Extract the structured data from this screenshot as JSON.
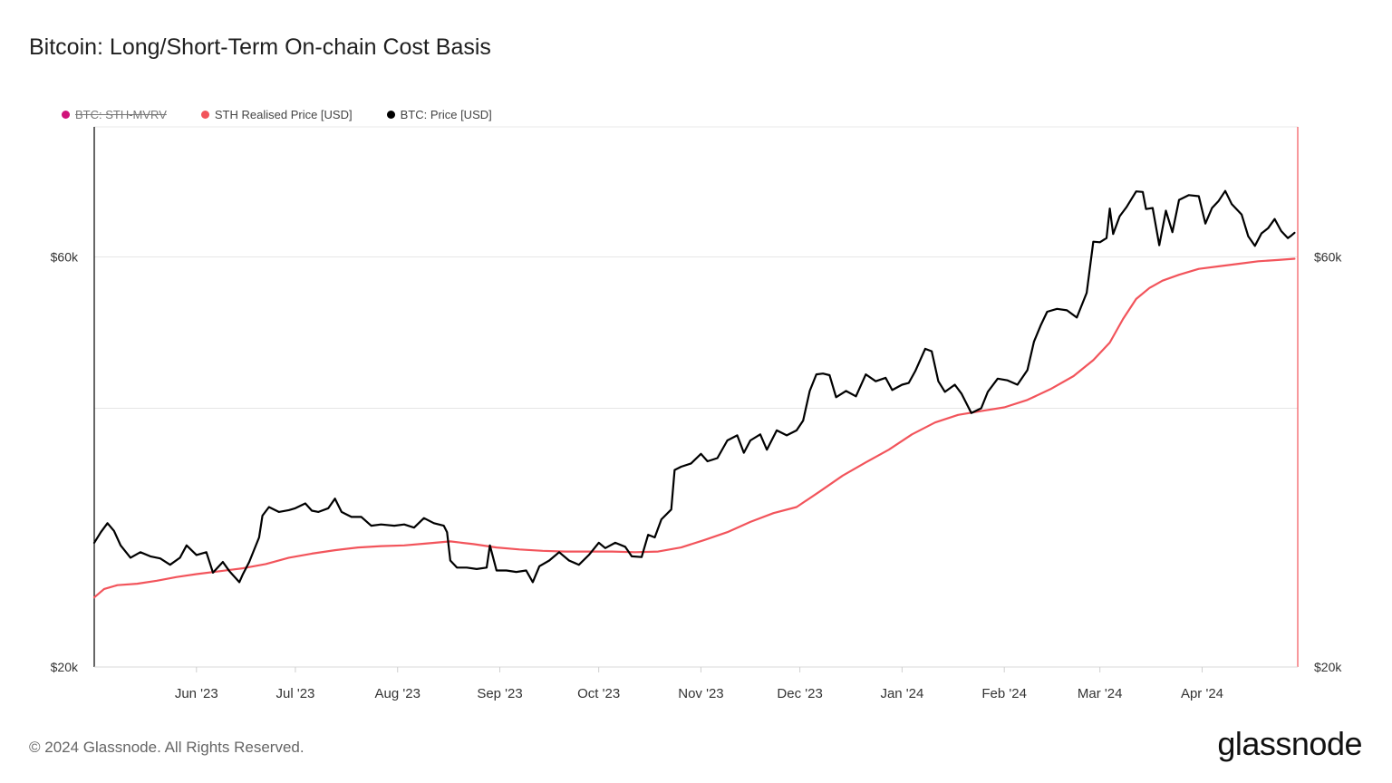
{
  "title": "Bitcoin: Long/Short-Term On-chain Cost Basis",
  "legend": [
    {
      "label": "BTC: STH-MVRV",
      "color": "#d0137a",
      "disabled": true
    },
    {
      "label": "STH Realised Price [USD]",
      "color": "#f2545b",
      "disabled": false
    },
    {
      "label": "BTC: Price [USD]",
      "color": "#000000",
      "disabled": false
    }
  ],
  "footer": "© 2024 Glassnode. All Rights Reserved.",
  "logo": "glassnode",
  "chart_data": {
    "type": "line",
    "title": "Bitcoin: Long/Short-Term On-chain Cost Basis",
    "y_scale": "log",
    "ylim": [
      20000,
      85000
    ],
    "xlim": [
      "2023-05-01",
      "2024-04-30"
    ],
    "y_ticks": [
      {
        "value": 20000,
        "label": "$20k"
      },
      {
        "value": 60000,
        "label": "$60k"
      }
    ],
    "x_ticks": [
      {
        "date": "2023-06-01",
        "label": "Jun '23"
      },
      {
        "date": "2023-07-01",
        "label": "Jul '23"
      },
      {
        "date": "2023-08-01",
        "label": "Aug '23"
      },
      {
        "date": "2023-09-01",
        "label": "Sep '23"
      },
      {
        "date": "2023-10-01",
        "label": "Oct '23"
      },
      {
        "date": "2023-11-01",
        "label": "Nov '23"
      },
      {
        "date": "2023-12-01",
        "label": "Dec '23"
      },
      {
        "date": "2024-01-01",
        "label": "Jan '24"
      },
      {
        "date": "2024-02-01",
        "label": "Feb '24"
      },
      {
        "date": "2024-03-01",
        "label": "Mar '24"
      },
      {
        "date": "2024-04-01",
        "label": "Apr '24"
      }
    ],
    "grid": true,
    "legend_position": "top-left",
    "series": [
      {
        "name": "BTC: Price [USD]",
        "color": "#000000",
        "points": [
          [
            "2023-05-01",
            27900
          ],
          [
            "2023-05-03",
            28700
          ],
          [
            "2023-05-05",
            29400
          ],
          [
            "2023-05-07",
            28800
          ],
          [
            "2023-05-09",
            27700
          ],
          [
            "2023-05-12",
            26800
          ],
          [
            "2023-05-15",
            27200
          ],
          [
            "2023-05-18",
            26900
          ],
          [
            "2023-05-21",
            26750
          ],
          [
            "2023-05-24",
            26300
          ],
          [
            "2023-05-27",
            26800
          ],
          [
            "2023-05-29",
            27700
          ],
          [
            "2023-06-01",
            27000
          ],
          [
            "2023-06-04",
            27200
          ],
          [
            "2023-06-06",
            25750
          ],
          [
            "2023-06-09",
            26500
          ],
          [
            "2023-06-11",
            25850
          ],
          [
            "2023-06-14",
            25100
          ],
          [
            "2023-06-15",
            25600
          ],
          [
            "2023-06-17",
            26500
          ],
          [
            "2023-06-20",
            28300
          ],
          [
            "2023-06-21",
            30000
          ],
          [
            "2023-06-23",
            30700
          ],
          [
            "2023-06-26",
            30300
          ],
          [
            "2023-06-29",
            30450
          ],
          [
            "2023-07-01",
            30600
          ],
          [
            "2023-07-04",
            31000
          ],
          [
            "2023-07-06",
            30400
          ],
          [
            "2023-07-08",
            30300
          ],
          [
            "2023-07-11",
            30600
          ],
          [
            "2023-07-13",
            31400
          ],
          [
            "2023-07-15",
            30300
          ],
          [
            "2023-07-18",
            29900
          ],
          [
            "2023-07-21",
            29900
          ],
          [
            "2023-07-24",
            29200
          ],
          [
            "2023-07-27",
            29300
          ],
          [
            "2023-07-31",
            29200
          ],
          [
            "2023-08-03",
            29300
          ],
          [
            "2023-08-06",
            29050
          ],
          [
            "2023-08-09",
            29800
          ],
          [
            "2023-08-12",
            29400
          ],
          [
            "2023-08-15",
            29200
          ],
          [
            "2023-08-16",
            28700
          ],
          [
            "2023-08-17",
            26600
          ],
          [
            "2023-08-19",
            26100
          ],
          [
            "2023-08-22",
            26100
          ],
          [
            "2023-08-25",
            26000
          ],
          [
            "2023-08-28",
            26100
          ],
          [
            "2023-08-29",
            27700
          ],
          [
            "2023-08-31",
            25900
          ],
          [
            "2023-09-03",
            25900
          ],
          [
            "2023-09-06",
            25800
          ],
          [
            "2023-09-09",
            25900
          ],
          [
            "2023-09-11",
            25100
          ],
          [
            "2023-09-13",
            26200
          ],
          [
            "2023-09-16",
            26600
          ],
          [
            "2023-09-19",
            27200
          ],
          [
            "2023-09-22",
            26600
          ],
          [
            "2023-09-25",
            26300
          ],
          [
            "2023-09-28",
            27000
          ],
          [
            "2023-10-01",
            27900
          ],
          [
            "2023-10-03",
            27500
          ],
          [
            "2023-10-06",
            27900
          ],
          [
            "2023-10-09",
            27600
          ],
          [
            "2023-10-11",
            26900
          ],
          [
            "2023-10-14",
            26850
          ],
          [
            "2023-10-16",
            28500
          ],
          [
            "2023-10-18",
            28300
          ],
          [
            "2023-10-20",
            29700
          ],
          [
            "2023-10-23",
            30500
          ],
          [
            "2023-10-24",
            33900
          ],
          [
            "2023-10-26",
            34200
          ],
          [
            "2023-10-29",
            34500
          ],
          [
            "2023-11-01",
            35400
          ],
          [
            "2023-11-03",
            34700
          ],
          [
            "2023-11-06",
            35000
          ],
          [
            "2023-11-09",
            36700
          ],
          [
            "2023-11-12",
            37200
          ],
          [
            "2023-11-14",
            35500
          ],
          [
            "2023-11-16",
            36700
          ],
          [
            "2023-11-19",
            37300
          ],
          [
            "2023-11-21",
            35800
          ],
          [
            "2023-11-24",
            37700
          ],
          [
            "2023-11-27",
            37200
          ],
          [
            "2023-11-30",
            37700
          ],
          [
            "2023-12-02",
            38700
          ],
          [
            "2023-12-04",
            41900
          ],
          [
            "2023-12-06",
            43800
          ],
          [
            "2023-12-08",
            43900
          ],
          [
            "2023-12-10",
            43700
          ],
          [
            "2023-12-12",
            41200
          ],
          [
            "2023-12-15",
            41900
          ],
          [
            "2023-12-18",
            41300
          ],
          [
            "2023-12-21",
            43800
          ],
          [
            "2023-12-24",
            43000
          ],
          [
            "2023-12-27",
            43400
          ],
          [
            "2023-12-29",
            42000
          ],
          [
            "2024-01-01",
            42600
          ],
          [
            "2024-01-03",
            42800
          ],
          [
            "2024-01-05",
            44200
          ],
          [
            "2024-01-08",
            46900
          ],
          [
            "2024-01-10",
            46600
          ],
          [
            "2024-01-12",
            43000
          ],
          [
            "2024-01-14",
            41800
          ],
          [
            "2024-01-17",
            42600
          ],
          [
            "2024-01-19",
            41600
          ],
          [
            "2024-01-22",
            39500
          ],
          [
            "2024-01-25",
            40000
          ],
          [
            "2024-01-27",
            41800
          ],
          [
            "2024-01-30",
            43300
          ],
          [
            "2024-02-02",
            43100
          ],
          [
            "2024-02-05",
            42600
          ],
          [
            "2024-02-08",
            44300
          ],
          [
            "2024-02-10",
            47800
          ],
          [
            "2024-02-12",
            49900
          ],
          [
            "2024-02-14",
            51800
          ],
          [
            "2024-02-17",
            52200
          ],
          [
            "2024-02-20",
            52000
          ],
          [
            "2024-02-23",
            51000
          ],
          [
            "2024-02-26",
            54500
          ],
          [
            "2024-02-28",
            62500
          ],
          [
            "2024-03-01",
            62400
          ],
          [
            "2024-03-03",
            63100
          ],
          [
            "2024-03-04",
            68300
          ],
          [
            "2024-03-05",
            63800
          ],
          [
            "2024-03-07",
            66900
          ],
          [
            "2024-03-09",
            68500
          ],
          [
            "2024-03-12",
            71500
          ],
          [
            "2024-03-14",
            71400
          ],
          [
            "2024-03-15",
            68200
          ],
          [
            "2024-03-17",
            68400
          ],
          [
            "2024-03-19",
            61900
          ],
          [
            "2024-03-21",
            67900
          ],
          [
            "2024-03-23",
            64100
          ],
          [
            "2024-03-25",
            69900
          ],
          [
            "2024-03-28",
            70800
          ],
          [
            "2024-03-31",
            70600
          ],
          [
            "2024-04-02",
            65600
          ],
          [
            "2024-04-04",
            68400
          ],
          [
            "2024-04-06",
            69700
          ],
          [
            "2024-04-08",
            71600
          ],
          [
            "2024-04-10",
            69100
          ],
          [
            "2024-04-13",
            67200
          ],
          [
            "2024-04-15",
            63400
          ],
          [
            "2024-04-17",
            61800
          ],
          [
            "2024-04-19",
            63900
          ],
          [
            "2024-04-21",
            64800
          ],
          [
            "2024-04-23",
            66400
          ],
          [
            "2024-04-25",
            64300
          ],
          [
            "2024-04-27",
            63100
          ],
          [
            "2024-04-28",
            63500
          ],
          [
            "2024-04-29",
            64000
          ]
        ]
      },
      {
        "name": "STH Realised Price [USD]",
        "color": "#f2545b",
        "points": [
          [
            "2023-05-01",
            24100
          ],
          [
            "2023-05-04",
            24650
          ],
          [
            "2023-05-08",
            24900
          ],
          [
            "2023-05-14",
            25000
          ],
          [
            "2023-05-20",
            25200
          ],
          [
            "2023-05-26",
            25450
          ],
          [
            "2023-06-01",
            25650
          ],
          [
            "2023-06-08",
            25850
          ],
          [
            "2023-06-15",
            26050
          ],
          [
            "2023-06-22",
            26350
          ],
          [
            "2023-06-29",
            26800
          ],
          [
            "2023-07-06",
            27100
          ],
          [
            "2023-07-13",
            27350
          ],
          [
            "2023-07-20",
            27550
          ],
          [
            "2023-07-27",
            27650
          ],
          [
            "2023-08-03",
            27700
          ],
          [
            "2023-08-10",
            27850
          ],
          [
            "2023-08-17",
            28000
          ],
          [
            "2023-08-24",
            27800
          ],
          [
            "2023-08-31",
            27550
          ],
          [
            "2023-09-07",
            27400
          ],
          [
            "2023-09-14",
            27300
          ],
          [
            "2023-09-21",
            27250
          ],
          [
            "2023-09-28",
            27250
          ],
          [
            "2023-10-05",
            27250
          ],
          [
            "2023-10-12",
            27200
          ],
          [
            "2023-10-19",
            27250
          ],
          [
            "2023-10-26",
            27550
          ],
          [
            "2023-11-02",
            28100
          ],
          [
            "2023-11-09",
            28700
          ],
          [
            "2023-11-16",
            29500
          ],
          [
            "2023-11-23",
            30200
          ],
          [
            "2023-11-30",
            30700
          ],
          [
            "2023-12-07",
            32000
          ],
          [
            "2023-12-14",
            33400
          ],
          [
            "2023-12-21",
            34600
          ],
          [
            "2023-12-28",
            35800
          ],
          [
            "2024-01-04",
            37300
          ],
          [
            "2024-01-11",
            38500
          ],
          [
            "2024-01-18",
            39300
          ],
          [
            "2024-01-25",
            39700
          ],
          [
            "2024-02-01",
            40100
          ],
          [
            "2024-02-08",
            40900
          ],
          [
            "2024-02-15",
            42100
          ],
          [
            "2024-02-22",
            43600
          ],
          [
            "2024-02-28",
            45500
          ],
          [
            "2024-03-04",
            47700
          ],
          [
            "2024-03-08",
            50800
          ],
          [
            "2024-03-12",
            53600
          ],
          [
            "2024-03-16",
            55200
          ],
          [
            "2024-03-20",
            56300
          ],
          [
            "2024-03-25",
            57200
          ],
          [
            "2024-03-31",
            58100
          ],
          [
            "2024-04-06",
            58500
          ],
          [
            "2024-04-12",
            58900
          ],
          [
            "2024-04-18",
            59300
          ],
          [
            "2024-04-24",
            59500
          ],
          [
            "2024-04-29",
            59700
          ]
        ]
      }
    ]
  }
}
